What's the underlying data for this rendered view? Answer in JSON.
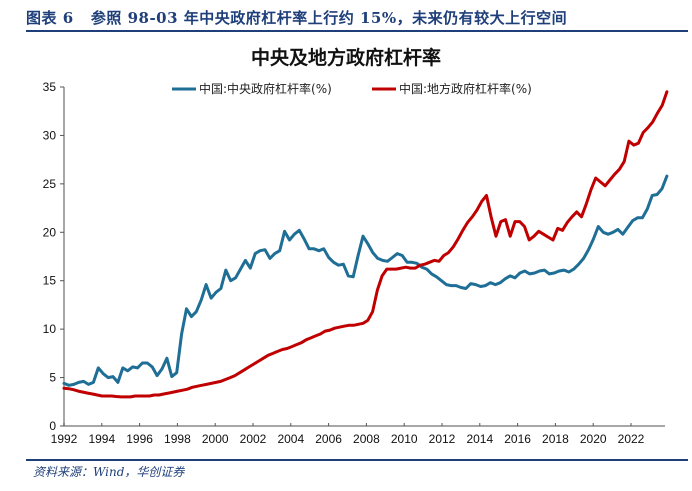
{
  "figure": {
    "label": "图表 6",
    "title": "参照 98-03 年中央政府杠杆率上行约 15%，未来仍有较大上行空间",
    "source": "资料来源：Wind，华创证券"
  },
  "chart_data": {
    "type": "line",
    "title": "中央及地方政府杠杆率",
    "xlabel": "",
    "ylabel": "",
    "xlim": [
      1992,
      2023.9
    ],
    "ylim": [
      0,
      35
    ],
    "x_ticks": [
      "1992",
      "1994",
      "1996",
      "1998",
      "2000",
      "2002",
      "2004",
      "2006",
      "2008",
      "2010",
      "2012",
      "2014",
      "2016",
      "2018",
      "2020",
      "2022"
    ],
    "y_ticks": [
      "0",
      "5",
      "10",
      "15",
      "20",
      "25",
      "30",
      "35"
    ],
    "grid": false,
    "legend_position": "top-center",
    "x_frequency": "quarterly",
    "x_start": 1992,
    "series": [
      {
        "name": "中国:中央政府杠杆率(%)",
        "color": "#1f6e96",
        "values": [
          4.4,
          4.2,
          4.3,
          4.5,
          4.6,
          4.3,
          4.5,
          6.0,
          5.4,
          5.0,
          5.1,
          4.5,
          6.0,
          5.7,
          6.1,
          6.0,
          6.5,
          6.5,
          6.1,
          5.2,
          5.9,
          7.0,
          5.1,
          5.5,
          9.5,
          12.1,
          11.3,
          11.8,
          13.0,
          14.6,
          13.2,
          13.8,
          14.2,
          16.1,
          15.0,
          15.3,
          16.2,
          17.1,
          16.3,
          17.8,
          18.1,
          18.2,
          17.3,
          17.8,
          18.1,
          20.1,
          19.2,
          19.8,
          20.2,
          19.3,
          18.3,
          18.3,
          18.1,
          18.3,
          17.4,
          16.9,
          16.6,
          16.7,
          15.5,
          15.4,
          17.6,
          19.6,
          18.8,
          17.9,
          17.3,
          17.1,
          17.0,
          17.4,
          17.8,
          17.6,
          16.9,
          16.9,
          16.8,
          16.4,
          16.2,
          15.7,
          15.4,
          15.0,
          14.6,
          14.5,
          14.5,
          14.3,
          14.2,
          14.7,
          14.6,
          14.4,
          14.5,
          14.8,
          14.6,
          14.8,
          15.2,
          15.5,
          15.3,
          15.8,
          16.0,
          15.7,
          15.8,
          16.0,
          16.1,
          15.7,
          15.8,
          16.0,
          16.1,
          15.9,
          16.2,
          16.7,
          17.3,
          18.2,
          19.3,
          20.6,
          20.0,
          19.8,
          20.0,
          20.3,
          19.8,
          20.5,
          21.2,
          21.5,
          21.5,
          22.4,
          23.8,
          23.9,
          24.5,
          25.8
        ]
      },
      {
        "name": "中国:地方政府杠杆率(%)",
        "color": "#c00000",
        "values": [
          3.9,
          3.85,
          3.75,
          3.6,
          3.5,
          3.4,
          3.3,
          3.2,
          3.1,
          3.1,
          3.1,
          3.05,
          3.0,
          3.0,
          3.0,
          3.1,
          3.1,
          3.1,
          3.1,
          3.2,
          3.2,
          3.3,
          3.4,
          3.5,
          3.6,
          3.7,
          3.8,
          4.0,
          4.1,
          4.2,
          4.3,
          4.4,
          4.5,
          4.6,
          4.8,
          5.0,
          5.2,
          5.5,
          5.8,
          6.1,
          6.4,
          6.7,
          7.0,
          7.3,
          7.5,
          7.7,
          7.9,
          8.0,
          8.2,
          8.4,
          8.6,
          8.9,
          9.1,
          9.3,
          9.5,
          9.8,
          9.9,
          10.1,
          10.2,
          10.3,
          10.4,
          10.4,
          10.5,
          10.6,
          10.9,
          11.8,
          14.0,
          15.5,
          16.2,
          16.2,
          16.2,
          16.3,
          16.4,
          16.3,
          16.3,
          16.6,
          16.7,
          16.9,
          17.1,
          17.0,
          17.6,
          17.9,
          18.5,
          19.3,
          20.2,
          21.0,
          21.6,
          22.3,
          23.2,
          23.8,
          21.5,
          19.6,
          21.1,
          21.3,
          19.6,
          21.1,
          21.1,
          20.6,
          19.2,
          19.6,
          20.1,
          19.8,
          19.5,
          19.2,
          20.4,
          20.2,
          21.0,
          21.6,
          22.1,
          21.6,
          22.9,
          24.4,
          25.6,
          25.2,
          24.8,
          25.4,
          26.0,
          26.5,
          27.3,
          29.4,
          29.0,
          29.2,
          30.3,
          30.8,
          31.4,
          32.3,
          33.1,
          34.5
        ]
      }
    ]
  }
}
